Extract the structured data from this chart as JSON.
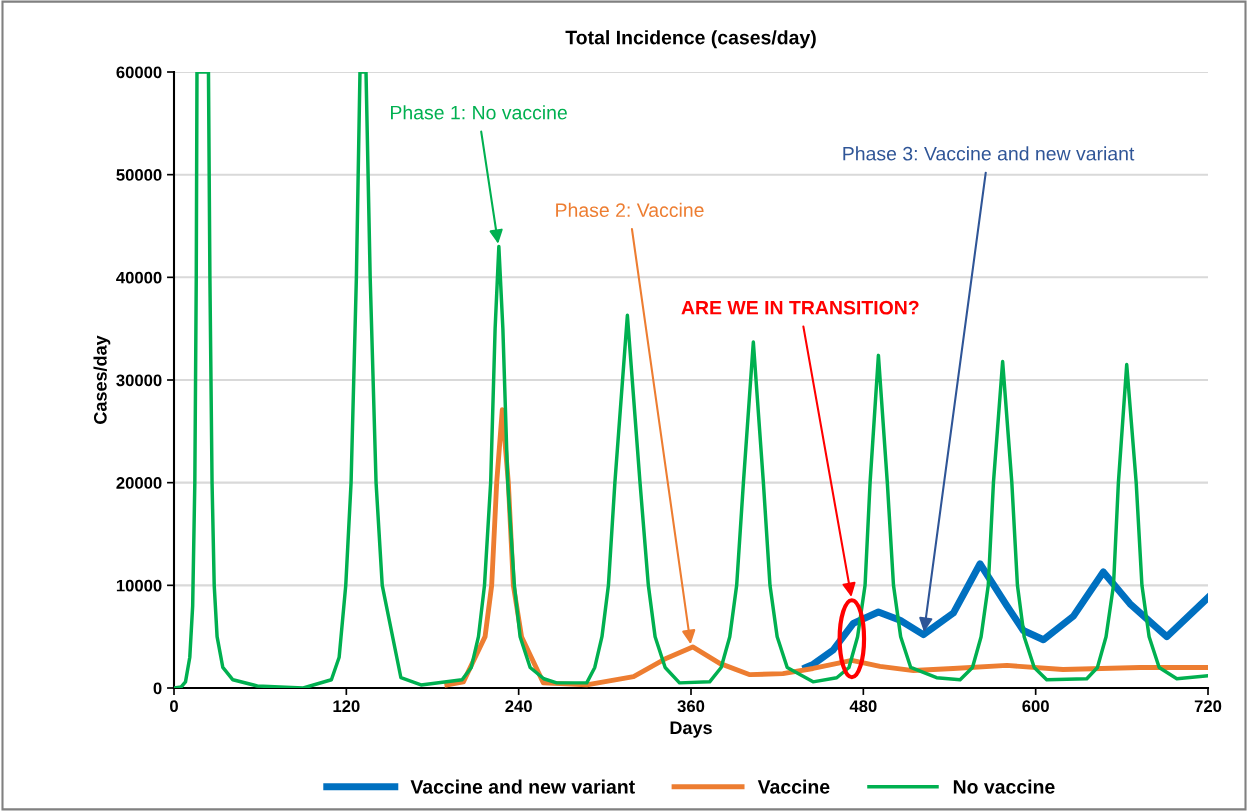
{
  "chart_data": {
    "type": "line",
    "title": "Total Incidence (cases/day)",
    "xlabel": "Days",
    "ylabel": "Cases/day",
    "xlim": [
      0,
      720
    ],
    "xticks": [
      0,
      120,
      240,
      360,
      480,
      600,
      720
    ],
    "ylim": [
      0,
      60000
    ],
    "yticks": [
      0,
      10000,
      20000,
      30000,
      40000,
      50000,
      60000
    ],
    "grid": "y",
    "legend": "bottom",
    "marker": "none",
    "line_style": "solid",
    "series": [
      {
        "name": "Vaccine and new variant",
        "color": "#0070c0",
        "x": [
          440,
          445,
          459,
          473,
          490.5,
          505.6,
          521.8,
          542.7,
          561.3,
          580,
          591.4,
          605.4,
          626.3,
          647.1,
          665.7,
          691.3,
          720
        ],
        "values": [
          2000,
          2300,
          3700,
          6300,
          7400,
          6600,
          5200,
          7300,
          12100,
          8000,
          5600,
          4700,
          7000,
          11300,
          8200,
          5000,
          8800
        ]
      },
      {
        "name": "Vaccine",
        "color": "#ed7d31",
        "x": [
          190,
          201.5,
          216.6,
          221.2,
          224.7,
          228.6,
          232.8,
          236.3,
          242,
          257.2,
          287.4,
          320,
          343,
          361.2,
          380,
          401,
          424,
          445,
          472,
          491.6,
          515,
          542.5,
          580,
          619,
          672.7,
          720
        ],
        "values": [
          300,
          600,
          5000,
          10000,
          20000,
          27100,
          20000,
          10000,
          5000,
          500,
          300,
          1100,
          2900,
          4000,
          2400,
          1300,
          1400,
          1900,
          2700,
          2100,
          1700,
          1900,
          2200,
          1800,
          2000,
          2000
        ]
      },
      {
        "name": "No vaccine",
        "color": "#00b050",
        "x": [
          0,
          5,
          8,
          11,
          13,
          14.5,
          15.5,
          16,
          24,
          25,
          26.5,
          28,
          30,
          34,
          41,
          58,
          90,
          109.6,
          115,
          119.6,
          123.3,
          127,
          129.5,
          133.7,
          136.6,
          140.7,
          145,
          158,
          172,
          200.6,
          207,
          212,
          216.2,
          220.5,
          223.6,
          226.2,
          229,
          232.4,
          237,
          241,
          248,
          257.5,
          266.5,
          287.4,
          293,
          298,
          302.5,
          307,
          315.7,
          324.5,
          330.3,
          335,
          342,
          352,
          373,
          381,
          387,
          391.8,
          396.5,
          403.4,
          410.4,
          415,
          420,
          427,
          445,
          461.5,
          470,
          476,
          481.2,
          484.7,
          490.5,
          496.7,
          501,
          506,
          513,
          531,
          547.4,
          556,
          562,
          567,
          570.6,
          577,
          583.4,
          587.3,
          592,
          599,
          607.7,
          635.6,
          643,
          649,
          654.2,
          657.6,
          663.4,
          670,
          674,
          679,
          686,
          698.3,
          720
        ],
        "values": [
          0,
          100,
          600,
          3000,
          8000,
          20000,
          40000,
          60000,
          60000,
          40000,
          20000,
          10000,
          5000,
          2000,
          800,
          200,
          0,
          800,
          3000,
          10000,
          20000,
          40000,
          60000,
          60000,
          40000,
          20000,
          10000,
          1000,
          300,
          800,
          2000,
          5000,
          10000,
          20000,
          35000,
          43000,
          35000,
          20000,
          10000,
          5000,
          2000,
          900,
          500,
          500,
          2000,
          5000,
          10000,
          20000,
          36300,
          20000,
          10000,
          5000,
          2000,
          500,
          600,
          2000,
          5000,
          10000,
          20000,
          33700,
          20000,
          10000,
          5000,
          2000,
          600,
          1000,
          2000,
          5000,
          10000,
          20000,
          32400,
          20000,
          10000,
          5000,
          2000,
          1000,
          800,
          2000,
          5000,
          10000,
          20000,
          31800,
          20000,
          10000,
          5000,
          2000,
          800,
          900,
          2000,
          5000,
          10000,
          20000,
          31500,
          20000,
          10000,
          5000,
          2000,
          900,
          1200
        ]
      }
    ],
    "annotations": [
      {
        "text": "Phase 1: No vaccine",
        "x": 226,
        "y": 43000
      },
      {
        "text": "Phase 2: Vaccine",
        "x": 360,
        "y": 4000
      },
      "ARE WE IN TRANSITION?",
      {
        "text": "Phase 3: Vaccine and new variant",
        "x": 522,
        "y": 5200
      }
    ]
  }
}
